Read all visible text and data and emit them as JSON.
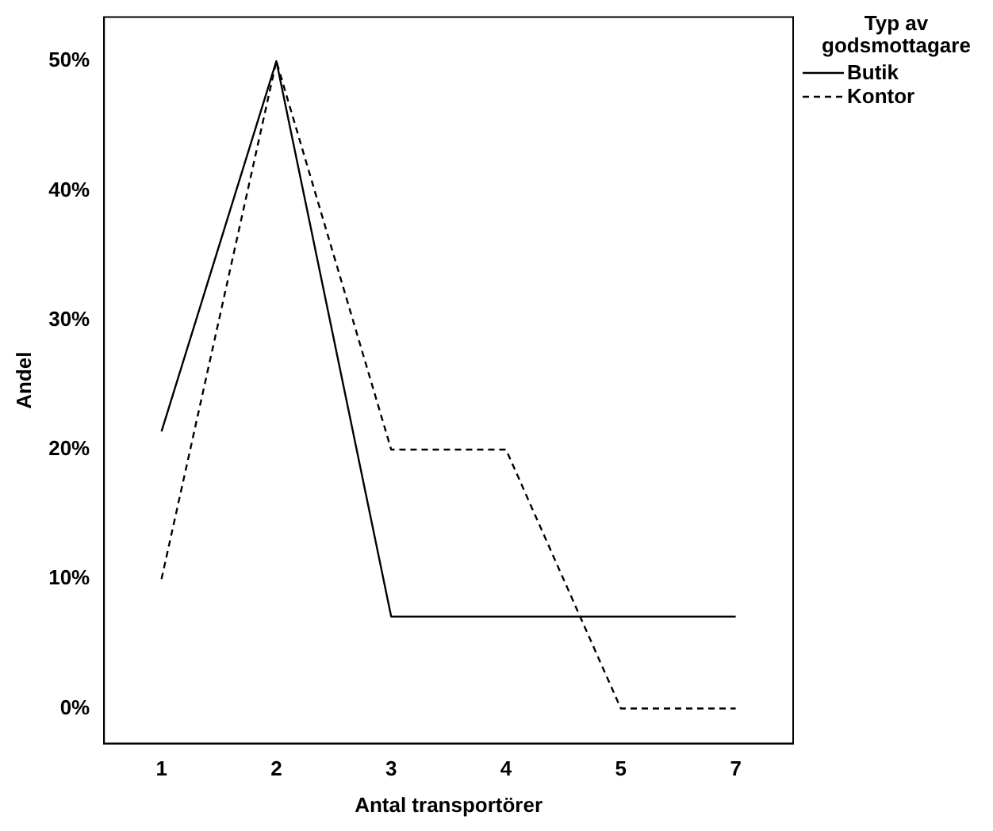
{
  "chart_data": {
    "type": "line",
    "xlabel": "Antal transportörer",
    "ylabel": "Andel",
    "legend_title": "Typ av godsmottagare",
    "legend": "top right",
    "grid": false,
    "marker": "none",
    "categories": [
      "1",
      "2",
      "3",
      "4",
      "5",
      "7"
    ],
    "ylim": [
      -2.7,
      53.4
    ],
    "yticks": [
      {
        "value": 0,
        "label": "0%"
      },
      {
        "value": 10,
        "label": "10%"
      },
      {
        "value": 20,
        "label": "20%"
      },
      {
        "value": 30,
        "label": "30%"
      },
      {
        "value": 40,
        "label": "40%"
      },
      {
        "value": 50,
        "label": "50%"
      }
    ],
    "series": [
      {
        "name": "Butik",
        "color": "#000000",
        "line_style": "solid",
        "values": [
          21.4,
          50,
          7.1,
          7.1,
          7.1,
          7.1
        ]
      },
      {
        "name": "Kontor",
        "color": "#000000",
        "line_style": "dashed",
        "values": [
          10,
          50,
          20,
          20,
          0,
          0
        ]
      }
    ]
  }
}
